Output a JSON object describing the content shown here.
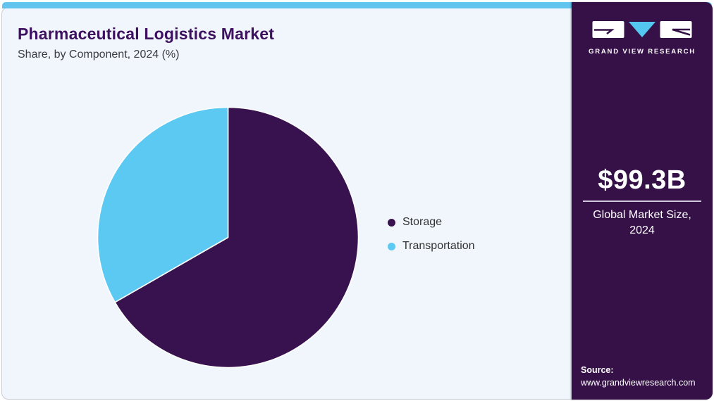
{
  "header": {
    "title": "Pharmaceutical Logistics Market",
    "subtitle": "Share, by Component, 2024 (%)"
  },
  "chart_data": {
    "type": "pie",
    "title": "Pharmaceutical Logistics Market Share, by Component, 2024 (%)",
    "labels": [
      "Storage",
      "Transportation"
    ],
    "values": [
      66.7,
      33.3
    ],
    "colors": [
      "#38124E",
      "#5CC9F2"
    ],
    "start_angle_deg": 0,
    "direction": "clockwise",
    "legend_position": "right",
    "slice_gap_color": "#FFFFFF"
  },
  "sidebar": {
    "brand": "GRAND VIEW RESEARCH",
    "market_size_value": "$99.3B",
    "market_size_label_line1": "Global Market Size,",
    "market_size_label_line2": "2024",
    "source_label": "Source:",
    "source_url": "www.grandviewresearch.com"
  },
  "colors": {
    "accent_bar": "#63C5EE",
    "card_background": "#F0F6FB",
    "sidebar_background": "#361148",
    "title_text": "#3D1160",
    "logo_triangle": "#53C7F0"
  }
}
